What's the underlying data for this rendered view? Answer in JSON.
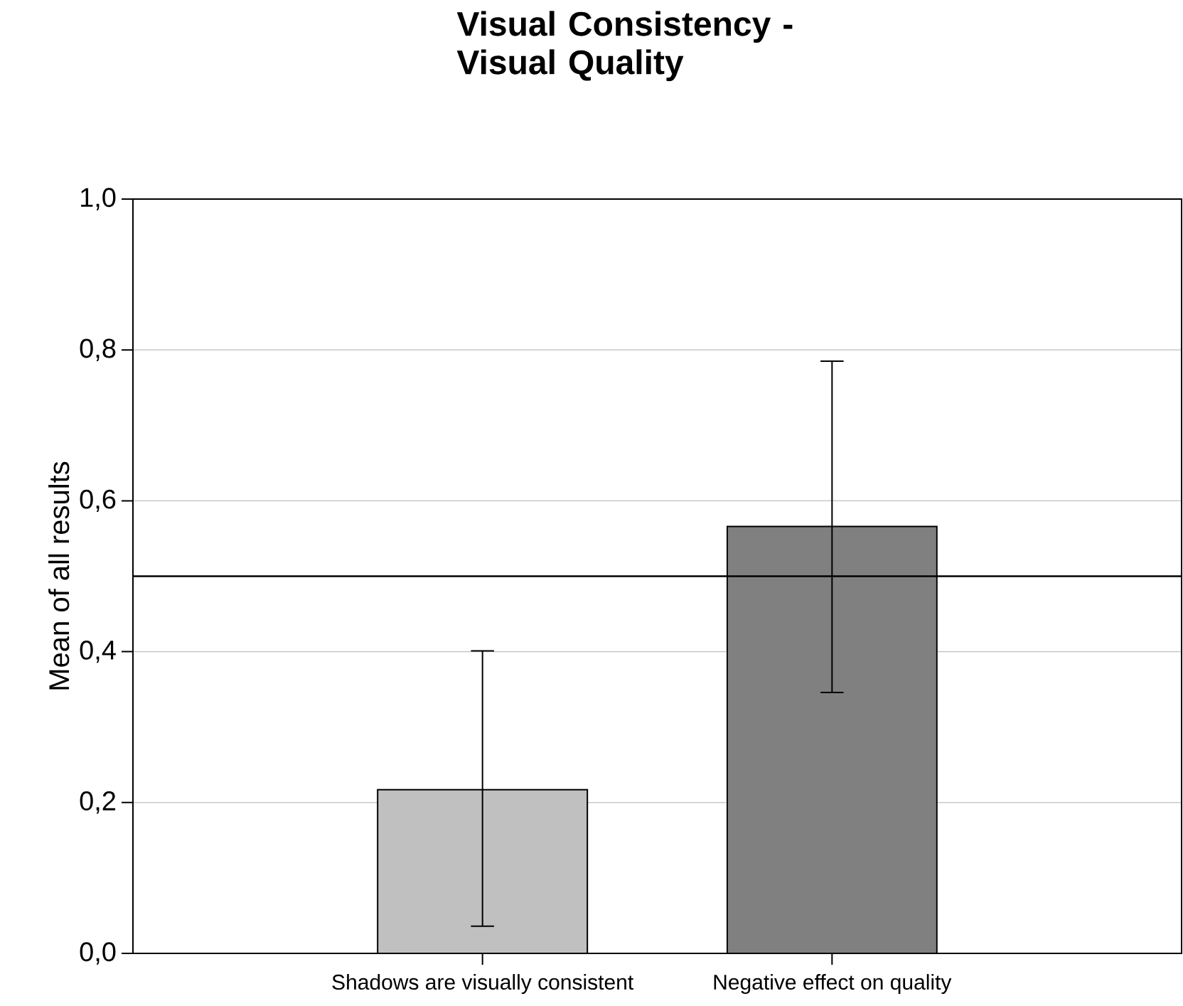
{
  "chart_data": {
    "type": "bar",
    "title": "Visual Consistency - Visual Quality",
    "ylabel": "Mean of all results",
    "categories": [
      "Shadows are visually consistent",
      "Negative effect on quality"
    ],
    "values": [
      0.217,
      0.566
    ],
    "colors": [
      "#c0c0c0",
      "#808080"
    ],
    "errors": [
      [
        0.036,
        0.401
      ],
      [
        0.346,
        0.785
      ]
    ],
    "ylim": [
      0,
      1
    ],
    "yticks": [
      {
        "value": 0,
        "label": "0,0"
      },
      {
        "value": 0.2,
        "label": "0,2"
      },
      {
        "value": 0.4,
        "label": "0,4"
      },
      {
        "value": 0.6,
        "label": "0,6"
      },
      {
        "value": 0.8,
        "label": "0,8"
      },
      {
        "value": 1,
        "label": "1,0"
      }
    ],
    "ref_lines": [
      {
        "axis": "y",
        "value": 0.5,
        "color": "#000000"
      }
    ],
    "grid": "y"
  }
}
